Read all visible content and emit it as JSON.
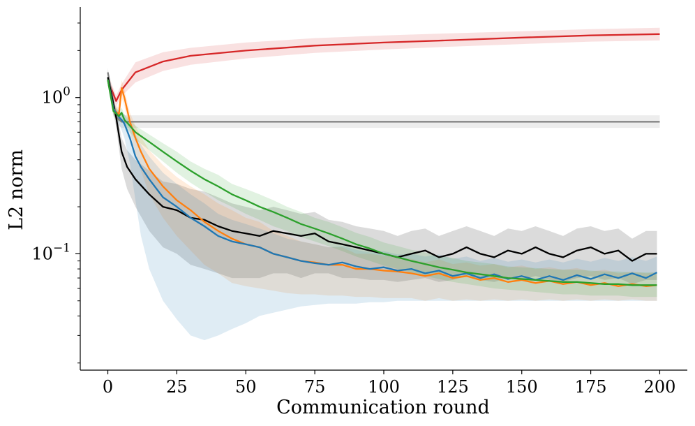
{
  "chart_data": {
    "type": "line",
    "title": "",
    "xlabel": "Communication round",
    "ylabel": "L2 norm",
    "xlim": [
      -10,
      210
    ],
    "ylim": [
      0.018,
      3.8
    ],
    "yscale": "log",
    "xticks": [
      0,
      25,
      50,
      75,
      100,
      125,
      150,
      175,
      200
    ],
    "xtick_labels": [
      "0",
      "25",
      "50",
      "75",
      "100",
      "125",
      "150",
      "175",
      "200"
    ],
    "yticks": [
      {
        "value": 1.0,
        "base": "10",
        "exp": "0"
      },
      {
        "value": 0.1,
        "base": "10",
        "exp": "−1"
      }
    ],
    "grid": false,
    "legend": "none",
    "series": [
      {
        "name": "red",
        "color": "#d62728",
        "x": [
          0,
          3,
          5,
          10,
          20,
          30,
          50,
          75,
          100,
          125,
          150,
          175,
          200
        ],
        "values": [
          1.3,
          0.95,
          1.12,
          1.45,
          1.7,
          1.85,
          2.0,
          2.15,
          2.25,
          2.33,
          2.42,
          2.5,
          2.55
        ],
        "lower": [
          1.2,
          0.88,
          1.02,
          1.25,
          1.48,
          1.62,
          1.78,
          1.93,
          2.03,
          2.12,
          2.2,
          2.28,
          2.32
        ],
        "upper": [
          1.42,
          1.03,
          1.22,
          1.68,
          1.95,
          2.08,
          2.25,
          2.4,
          2.5,
          2.58,
          2.66,
          2.74,
          2.8
        ]
      },
      {
        "name": "gray",
        "color": "#7f7f7f",
        "x": [
          0,
          3,
          5,
          10,
          50,
          100,
          150,
          200
        ],
        "values": [
          1.45,
          0.75,
          0.7,
          0.7,
          0.7,
          0.7,
          0.7,
          0.7
        ],
        "lower": [
          1.35,
          0.68,
          0.64,
          0.64,
          0.64,
          0.64,
          0.64,
          0.64
        ],
        "upper": [
          1.55,
          0.8,
          0.77,
          0.77,
          0.77,
          0.77,
          0.77,
          0.77
        ]
      },
      {
        "name": "black",
        "color": "#000000",
        "x": [
          0,
          3,
          5,
          7,
          10,
          15,
          20,
          25,
          30,
          35,
          40,
          45,
          50,
          55,
          60,
          65,
          70,
          75,
          80,
          85,
          90,
          95,
          100,
          105,
          110,
          115,
          120,
          125,
          130,
          135,
          140,
          145,
          150,
          155,
          160,
          165,
          170,
          175,
          180,
          185,
          190,
          195,
          199
        ],
        "values": [
          1.35,
          0.75,
          0.45,
          0.36,
          0.3,
          0.24,
          0.2,
          0.19,
          0.17,
          0.165,
          0.15,
          0.14,
          0.135,
          0.13,
          0.14,
          0.135,
          0.13,
          0.135,
          0.12,
          0.115,
          0.11,
          0.105,
          0.1,
          0.095,
          0.1,
          0.105,
          0.095,
          0.1,
          0.11,
          0.1,
          0.095,
          0.105,
          0.1,
          0.11,
          0.1,
          0.095,
          0.105,
          0.11,
          0.1,
          0.105,
          0.09,
          0.1,
          0.1
        ],
        "lower": [
          1.2,
          0.65,
          0.35,
          0.26,
          0.2,
          0.14,
          0.11,
          0.1,
          0.085,
          0.08,
          0.075,
          0.07,
          0.07,
          0.07,
          0.075,
          0.075,
          0.07,
          0.075,
          0.075,
          0.07,
          0.07,
          0.068,
          0.068,
          0.066,
          0.068,
          0.07,
          0.066,
          0.068,
          0.072,
          0.068,
          0.066,
          0.07,
          0.068,
          0.072,
          0.068,
          0.066,
          0.07,
          0.072,
          0.068,
          0.07,
          0.064,
          0.068,
          0.068
        ],
        "upper": [
          1.5,
          0.85,
          0.55,
          0.46,
          0.4,
          0.34,
          0.29,
          0.28,
          0.26,
          0.25,
          0.23,
          0.21,
          0.2,
          0.19,
          0.2,
          0.19,
          0.18,
          0.185,
          0.165,
          0.16,
          0.15,
          0.145,
          0.14,
          0.13,
          0.14,
          0.145,
          0.13,
          0.14,
          0.15,
          0.14,
          0.13,
          0.145,
          0.14,
          0.15,
          0.14,
          0.13,
          0.145,
          0.15,
          0.14,
          0.145,
          0.125,
          0.14,
          0.14
        ]
      },
      {
        "name": "orange",
        "color": "#ff7f0e",
        "x": [
          0,
          2,
          4,
          5,
          6,
          8,
          10,
          12,
          15,
          20,
          25,
          30,
          35,
          40,
          45,
          50,
          55,
          60,
          65,
          70,
          75,
          80,
          85,
          90,
          95,
          100,
          105,
          110,
          115,
          120,
          125,
          130,
          135,
          140,
          145,
          150,
          155,
          160,
          165,
          170,
          175,
          180,
          185,
          190,
          195,
          199
        ],
        "values": [
          1.3,
          0.85,
          0.78,
          1.15,
          1.0,
          0.7,
          0.55,
          0.45,
          0.35,
          0.27,
          0.22,
          0.19,
          0.16,
          0.14,
          0.125,
          0.115,
          0.11,
          0.1,
          0.095,
          0.09,
          0.088,
          0.085,
          0.085,
          0.08,
          0.08,
          0.078,
          0.077,
          0.075,
          0.072,
          0.075,
          0.07,
          0.072,
          0.068,
          0.07,
          0.066,
          0.068,
          0.065,
          0.067,
          0.064,
          0.066,
          0.063,
          0.065,
          0.062,
          0.064,
          0.062,
          0.063
        ],
        "lower": [
          1.2,
          0.78,
          0.7,
          1.0,
          0.88,
          0.6,
          0.44,
          0.34,
          0.24,
          0.17,
          0.13,
          0.105,
          0.085,
          0.075,
          0.065,
          0.062,
          0.06,
          0.058,
          0.056,
          0.055,
          0.055,
          0.054,
          0.054,
          0.053,
          0.053,
          0.052,
          0.052,
          0.052,
          0.05,
          0.052,
          0.05,
          0.051,
          0.05,
          0.051,
          0.05,
          0.051,
          0.05,
          0.051,
          0.05,
          0.051,
          0.05,
          0.051,
          0.05,
          0.051,
          0.05,
          0.05
        ],
        "upper": [
          1.4,
          0.92,
          0.86,
          1.3,
          1.12,
          0.8,
          0.66,
          0.56,
          0.46,
          0.37,
          0.31,
          0.27,
          0.24,
          0.21,
          0.19,
          0.17,
          0.16,
          0.14,
          0.13,
          0.12,
          0.115,
          0.11,
          0.11,
          0.1,
          0.1,
          0.097,
          0.095,
          0.093,
          0.088,
          0.092,
          0.086,
          0.088,
          0.084,
          0.086,
          0.082,
          0.084,
          0.08,
          0.082,
          0.079,
          0.081,
          0.077,
          0.079,
          0.075,
          0.077,
          0.075,
          0.076
        ]
      },
      {
        "name": "blue",
        "color": "#1f77b4",
        "x": [
          0,
          2,
          4,
          5,
          6,
          8,
          10,
          12,
          15,
          20,
          25,
          30,
          35,
          40,
          45,
          50,
          55,
          60,
          65,
          70,
          75,
          80,
          85,
          90,
          95,
          100,
          105,
          110,
          115,
          120,
          125,
          130,
          135,
          140,
          145,
          150,
          155,
          160,
          165,
          170,
          175,
          180,
          185,
          190,
          195,
          199
        ],
        "values": [
          1.3,
          0.85,
          0.75,
          0.72,
          0.68,
          0.55,
          0.42,
          0.36,
          0.3,
          0.23,
          0.2,
          0.17,
          0.15,
          0.13,
          0.12,
          0.115,
          0.11,
          0.1,
          0.095,
          0.09,
          0.087,
          0.085,
          0.088,
          0.083,
          0.08,
          0.082,
          0.078,
          0.08,
          0.075,
          0.078,
          0.072,
          0.075,
          0.07,
          0.074,
          0.069,
          0.072,
          0.068,
          0.072,
          0.068,
          0.073,
          0.069,
          0.074,
          0.07,
          0.075,
          0.07,
          0.076
        ],
        "lower": [
          1.2,
          0.78,
          0.68,
          0.62,
          0.55,
          0.38,
          0.22,
          0.13,
          0.08,
          0.05,
          0.038,
          0.03,
          0.028,
          0.03,
          0.033,
          0.036,
          0.04,
          0.042,
          0.044,
          0.046,
          0.047,
          0.048,
          0.048,
          0.048,
          0.049,
          0.049,
          0.05,
          0.05,
          0.05,
          0.05,
          0.05,
          0.05,
          0.05,
          0.05,
          0.05,
          0.05,
          0.05,
          0.05,
          0.05,
          0.05,
          0.05,
          0.05,
          0.05,
          0.05,
          0.05,
          0.05
        ],
        "upper": [
          1.4,
          0.92,
          0.82,
          0.8,
          0.78,
          0.68,
          0.58,
          0.5,
          0.42,
          0.33,
          0.28,
          0.24,
          0.21,
          0.18,
          0.165,
          0.155,
          0.145,
          0.135,
          0.125,
          0.12,
          0.115,
          0.11,
          0.112,
          0.106,
          0.102,
          0.104,
          0.099,
          0.1,
          0.096,
          0.099,
          0.093,
          0.096,
          0.09,
          0.094,
          0.089,
          0.092,
          0.088,
          0.092,
          0.088,
          0.093,
          0.089,
          0.094,
          0.09,
          0.095,
          0.09,
          0.096
        ]
      },
      {
        "name": "green",
        "color": "#2ca02c",
        "x": [
          0,
          2,
          4,
          5,
          6,
          8,
          10,
          15,
          20,
          25,
          30,
          35,
          40,
          45,
          50,
          55,
          60,
          65,
          70,
          75,
          80,
          85,
          90,
          95,
          100,
          105,
          110,
          115,
          120,
          125,
          130,
          135,
          140,
          145,
          150,
          155,
          160,
          165,
          170,
          175,
          180,
          185,
          190,
          195,
          199
        ],
        "values": [
          1.3,
          0.82,
          0.76,
          0.8,
          0.72,
          0.66,
          0.6,
          0.52,
          0.45,
          0.39,
          0.34,
          0.3,
          0.27,
          0.24,
          0.22,
          0.2,
          0.185,
          0.17,
          0.155,
          0.145,
          0.135,
          0.125,
          0.115,
          0.108,
          0.1,
          0.095,
          0.09,
          0.086,
          0.082,
          0.079,
          0.076,
          0.074,
          0.072,
          0.07,
          0.069,
          0.068,
          0.067,
          0.066,
          0.066,
          0.065,
          0.064,
          0.064,
          0.063,
          0.063,
          0.063
        ],
        "lower": [
          1.2,
          0.76,
          0.7,
          0.74,
          0.66,
          0.6,
          0.54,
          0.46,
          0.39,
          0.33,
          0.285,
          0.25,
          0.22,
          0.2,
          0.18,
          0.165,
          0.15,
          0.14,
          0.128,
          0.12,
          0.112,
          0.104,
          0.096,
          0.09,
          0.084,
          0.08,
          0.076,
          0.072,
          0.069,
          0.066,
          0.064,
          0.062,
          0.06,
          0.059,
          0.058,
          0.057,
          0.056,
          0.055,
          0.055,
          0.054,
          0.054,
          0.054,
          0.053,
          0.053,
          0.053
        ],
        "upper": [
          1.4,
          0.88,
          0.82,
          0.86,
          0.78,
          0.72,
          0.66,
          0.58,
          0.51,
          0.45,
          0.39,
          0.35,
          0.32,
          0.28,
          0.26,
          0.24,
          0.22,
          0.2,
          0.185,
          0.17,
          0.16,
          0.148,
          0.136,
          0.128,
          0.118,
          0.112,
          0.106,
          0.102,
          0.097,
          0.094,
          0.09,
          0.088,
          0.086,
          0.083,
          0.082,
          0.081,
          0.08,
          0.079,
          0.079,
          0.078,
          0.077,
          0.077,
          0.076,
          0.076,
          0.076
        ]
      }
    ]
  }
}
